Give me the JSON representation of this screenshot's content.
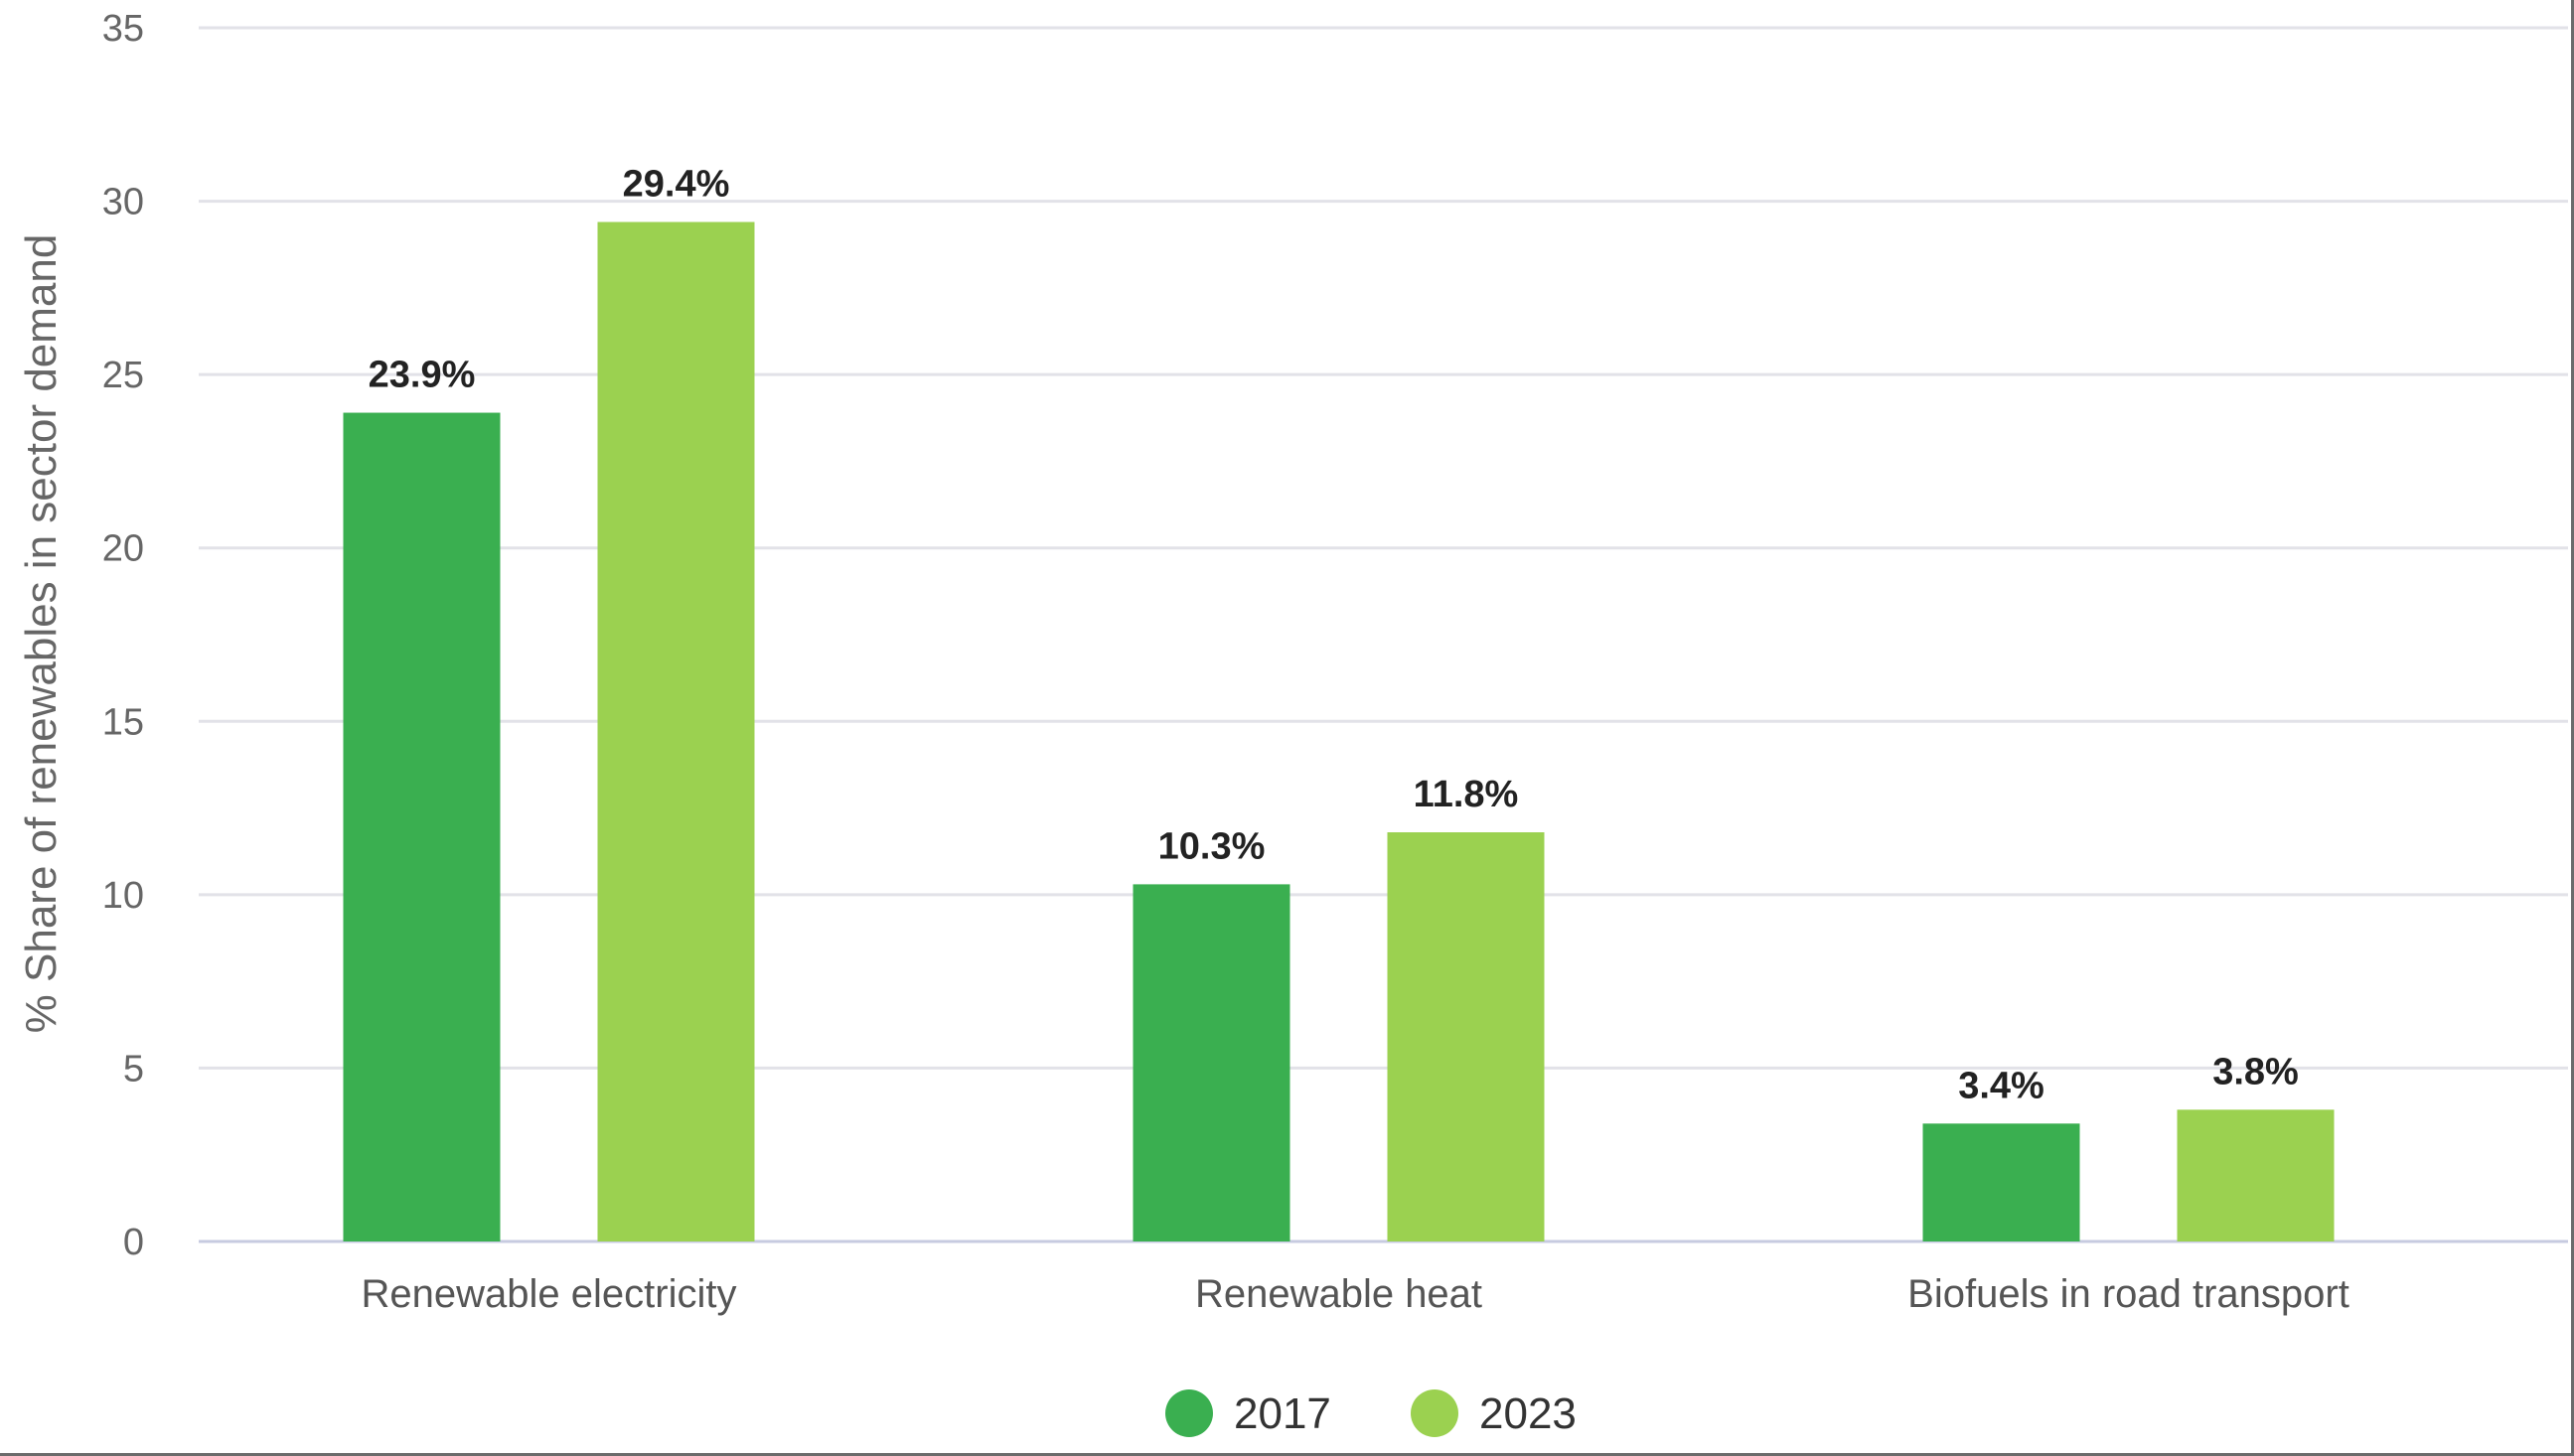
{
  "chart_data": {
    "type": "bar",
    "title": "",
    "xlabel": "",
    "ylabel": "% Share of renewables in sector demand",
    "ylim": [
      0,
      35
    ],
    "yticks": [
      0,
      5,
      10,
      15,
      20,
      25,
      30,
      35
    ],
    "grid": true,
    "legend_position": "bottom-center",
    "categories": [
      "Renewable electricity",
      "Renewable heat",
      "Biofuels in road transport"
    ],
    "series": [
      {
        "name": "2017",
        "color": "#3aaf50",
        "values": [
          23.9,
          10.3,
          3.4
        ],
        "labels": [
          "23.9%",
          "10.3%",
          "3.4%"
        ]
      },
      {
        "name": "2023",
        "color": "#9bd150",
        "values": [
          29.4,
          11.8,
          3.8
        ],
        "labels": [
          "29.4%",
          "11.8%",
          "3.8%"
        ]
      }
    ]
  }
}
